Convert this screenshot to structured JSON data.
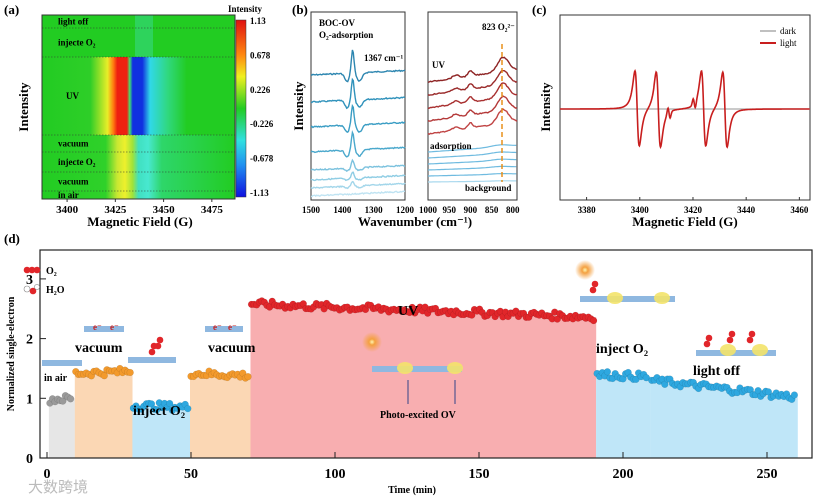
{
  "panel_labels": [
    "(a)",
    "(b)",
    "(c)",
    "(d)"
  ],
  "colors": {
    "red": "#e1262a",
    "orange": "#f39a2c",
    "blue": "#2ea8e0",
    "gray": "#9a9a9a",
    "uv_fill": "#f8aeb0",
    "air_fill": "#e6e6e6",
    "vac_fill": "#fbd7b4",
    "o2_fill": "#bfe6f8",
    "dark": "#aaaaaa",
    "light": "#c81e1e"
  },
  "chart_data": [
    {
      "type": "heatmap",
      "panel": "(a)",
      "xlabel": "Magnetic Field (G)",
      "ylabel": "Intensity",
      "xticks": [
        "3400",
        "3425",
        "3450",
        "3475"
      ],
      "xlim": [
        3387,
        3487
      ],
      "colorbar_title": "Intensity",
      "colorbar_ticks": [
        "1.13",
        "0.678",
        "0.226",
        "-0.226",
        "-0.678",
        "-1.13"
      ],
      "rows": [
        "light off",
        "injecte O₂",
        "UV",
        "vacuum",
        "injecte O₂",
        "vacuum",
        "in air"
      ],
      "positive_band_center": 3431,
      "negative_band_center": 3440
    },
    {
      "type": "line",
      "panel": "(b)",
      "xlabel": "Wavenumber (cm⁻¹)",
      "ylabel": "Intensity",
      "left": {
        "xticks": [
          "1500",
          "1400",
          "1300",
          "1200"
        ],
        "xlim": [
          1500,
          1200
        ],
        "title1": "BOC-OV",
        "title2": "O₂-adsorption",
        "peak_label": "1367 cm⁻¹",
        "peak": 1367,
        "n_curves": 8
      },
      "right": {
        "xticks": [
          "1000",
          "950",
          "900",
          "850",
          "800"
        ],
        "xlim": [
          1000,
          790
        ],
        "peak_label": "823 O₂²⁻",
        "peak": 823,
        "labels": {
          "uv": "UV",
          "adsorption": "adsorption",
          "background": "background"
        },
        "n_uv": 5,
        "n_ads": 5
      }
    },
    {
      "type": "line",
      "panel": "(c)",
      "xlabel": "Magnetic Field (G)",
      "ylabel": "Intensity",
      "xticks": [
        "3380",
        "3400",
        "3420",
        "3440",
        "3460"
      ],
      "xlim": [
        3370,
        3464
      ],
      "legend": [
        "dark",
        "light"
      ],
      "legend_position": "top-right",
      "line_centers": [
        3399,
        3407,
        3424,
        3432
      ]
    },
    {
      "type": "scatter",
      "panel": "(d)",
      "xlabel": "Time (min)",
      "ylabel": "Normalized single-electron",
      "xticks": [
        "0",
        "50",
        "100",
        "150",
        "200",
        "250"
      ],
      "yticks": [
        "0",
        "1",
        "2",
        "3"
      ],
      "xlim": [
        -2,
        265
      ],
      "ylim": [
        0,
        3.45
      ],
      "legend": [
        "O₂",
        "H₂O"
      ],
      "segments": [
        {
          "label": "in air",
          "start": 1,
          "end": 9,
          "level_start": 0.98,
          "level_end": 1.0,
          "fill": "air_fill",
          "dot": "gray"
        },
        {
          "label": "vacuum",
          "start": 10,
          "end": 29,
          "level_start": 1.42,
          "level_end": 1.45,
          "fill": "vac_fill",
          "dot": "orange"
        },
        {
          "label": "inject O₂",
          "start": 30,
          "end": 49,
          "level_start": 0.88,
          "level_end": 0.85,
          "fill": "o2_fill",
          "dot": "blue"
        },
        {
          "label": "vacuum",
          "start": 50,
          "end": 70,
          "level_start": 1.42,
          "level_end": 1.38,
          "fill": "vac_fill",
          "dot": "orange"
        },
        {
          "label": "UV",
          "start": 71,
          "end": 190,
          "level_start": 2.58,
          "level_end": 2.36,
          "fill": "uv_fill",
          "dot": "red"
        },
        {
          "label": "inject O₂",
          "start": 191,
          "end": 209,
          "level_start": 1.4,
          "level_end": 1.36,
          "fill": "o2_fill",
          "dot": "blue"
        },
        {
          "label": "light off",
          "start": 210,
          "end": 260,
          "level_start": 1.3,
          "level_end": 1.02,
          "fill": "o2_fill",
          "dot": "blue"
        }
      ],
      "annotations": {
        "photo": "Photo-excited OV",
        "electron": "e⁻"
      }
    }
  ],
  "watermark": "大数跨境"
}
